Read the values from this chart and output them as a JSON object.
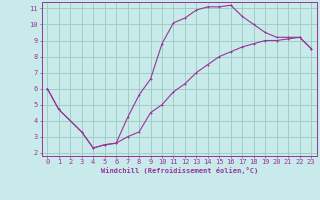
{
  "xlabel": "Windchill (Refroidissement éolien,°C)",
  "bg_color": "#c8eaea",
  "grid_color": "#99ccbb",
  "line_color": "#993399",
  "spine_color": "#993399",
  "xlim": [
    -0.5,
    23.5
  ],
  "ylim": [
    1.8,
    11.4
  ],
  "xticks": [
    0,
    1,
    2,
    3,
    4,
    5,
    6,
    7,
    8,
    9,
    10,
    11,
    12,
    13,
    14,
    15,
    16,
    17,
    18,
    19,
    20,
    21,
    22,
    23
  ],
  "yticks": [
    2,
    3,
    4,
    5,
    6,
    7,
    8,
    9,
    10,
    11
  ],
  "line1_x": [
    0,
    1,
    3,
    4,
    5,
    6,
    7,
    8,
    9,
    10,
    11,
    12,
    13,
    14,
    15,
    16,
    17,
    18,
    19,
    20,
    21,
    22,
    23
  ],
  "line1_y": [
    6.0,
    4.7,
    3.3,
    2.3,
    2.5,
    2.6,
    4.2,
    5.6,
    6.6,
    8.8,
    10.1,
    10.4,
    10.9,
    11.1,
    11.1,
    11.2,
    10.5,
    10.0,
    9.5,
    9.2,
    9.2,
    9.2,
    8.5
  ],
  "line2_x": [
    0,
    1,
    3,
    4,
    5,
    6,
    7,
    8,
    9,
    10,
    11,
    12,
    13,
    14,
    15,
    16,
    17,
    18,
    19,
    20,
    21,
    22,
    23
  ],
  "line2_y": [
    6.0,
    4.7,
    3.3,
    2.3,
    2.5,
    2.6,
    3.0,
    3.3,
    4.5,
    5.0,
    5.8,
    6.3,
    7.0,
    7.5,
    8.0,
    8.3,
    8.6,
    8.8,
    9.0,
    9.0,
    9.1,
    9.2,
    8.5
  ],
  "tick_fontsize": 5,
  "xlabel_fontsize": 5,
  "lw": 0.8,
  "ms": 2.0
}
